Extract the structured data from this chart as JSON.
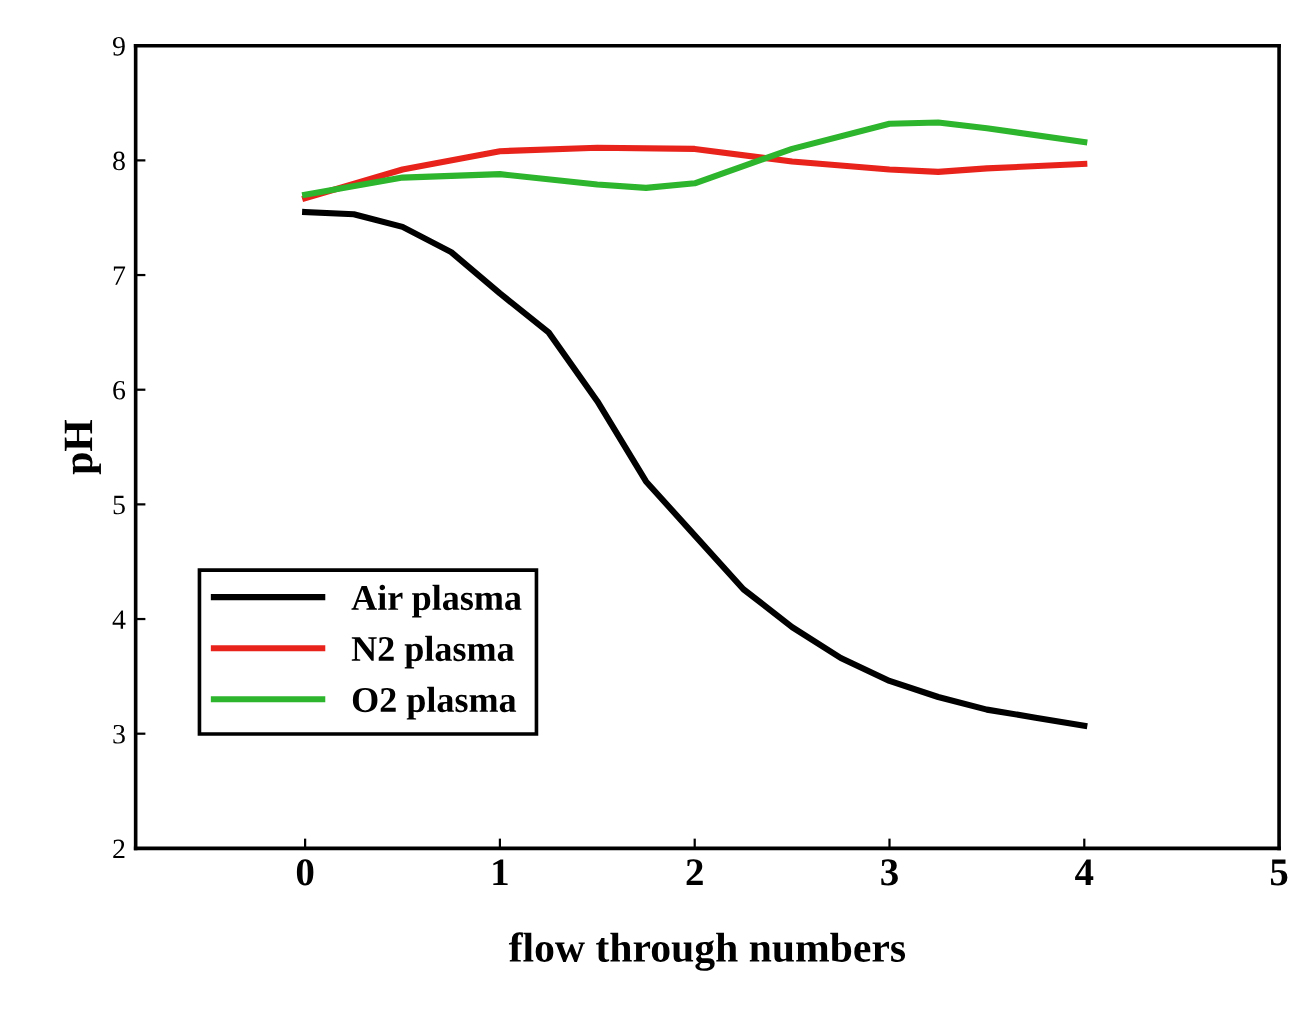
{
  "chart_data": {
    "type": "line",
    "xlabel": "flow through numbers",
    "ylabel": "pH",
    "xlim": [
      -0.87,
      5
    ],
    "xticks": [
      0,
      1,
      2,
      3,
      4,
      5
    ],
    "ylim": [
      2,
      9
    ],
    "yticks": [
      2,
      3,
      4,
      5,
      6,
      7,
      8,
      9
    ],
    "grid": false,
    "legend": "bottom left",
    "marker": "none",
    "line_style": "solid",
    "series": [
      {
        "name": "Air plasma",
        "color": "#000000",
        "x": [
          0,
          0.25,
          0.5,
          0.75,
          1,
          1.25,
          1.5,
          1.75,
          2,
          2.25,
          2.5,
          2.75,
          3,
          3.25,
          3.5,
          3.75,
          4
        ],
        "values": [
          7.55,
          7.53,
          7.42,
          7.2,
          6.84,
          6.5,
          5.9,
          5.2,
          4.73,
          4.26,
          3.93,
          3.66,
          3.46,
          3.32,
          3.21,
          3.14,
          3.07
        ]
      },
      {
        "name": "N2 plasma",
        "color": "#e8231c",
        "x": [
          0,
          0.5,
          1,
          1.5,
          2,
          2.5,
          3,
          3.25,
          3.5,
          4
        ],
        "values": [
          7.67,
          7.92,
          8.08,
          8.11,
          8.1,
          7.99,
          7.92,
          7.9,
          7.93,
          7.97
        ]
      },
      {
        "name": "O2 plasma",
        "color": "#2db52d",
        "x": [
          0,
          0.5,
          1,
          1.5,
          1.75,
          2,
          2.5,
          3,
          3.25,
          3.5,
          4
        ],
        "values": [
          7.7,
          7.85,
          7.88,
          7.79,
          7.76,
          7.8,
          8.1,
          8.32,
          8.33,
          8.28,
          8.16
        ]
      }
    ]
  }
}
